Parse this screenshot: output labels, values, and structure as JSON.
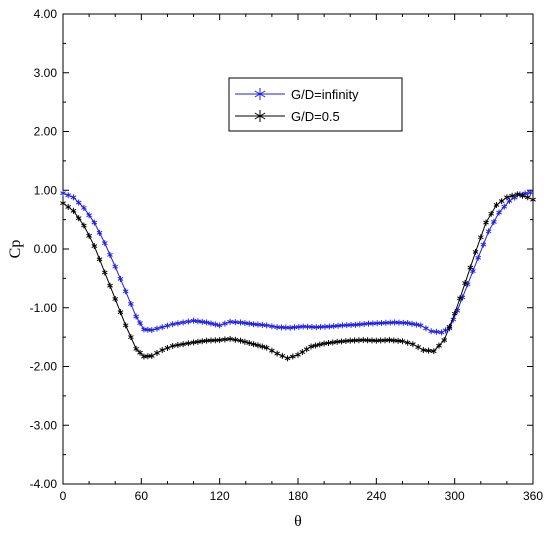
{
  "chart_data": {
    "type": "line",
    "title": "",
    "xlabel": "θ",
    "ylabel": "Cp",
    "xlim": [
      0,
      360
    ],
    "ylim": [
      -4,
      4
    ],
    "xticks": [
      0,
      60,
      120,
      180,
      240,
      300,
      360
    ],
    "yticks": [
      4,
      3,
      2,
      1,
      0,
      -1,
      -2,
      -3,
      -4
    ],
    "xtick_labels": [
      "0",
      "60",
      "120",
      "180",
      "240",
      "300",
      "360"
    ],
    "ytick_labels": [
      "4.00",
      "3.00",
      "2.00",
      "1.00",
      "0.00",
      "-1.00",
      "-2.00",
      "-3.00",
      "-4.00"
    ],
    "grid": false,
    "legend_position": "top-center",
    "series": [
      {
        "name": "G/D=infinity",
        "color": "#1f1fe6",
        "marker": "asterisk",
        "points": [
          [
            0,
            0.95
          ],
          [
            8,
            0.88
          ],
          [
            16,
            0.7
          ],
          [
            24,
            0.45
          ],
          [
            32,
            0.1
          ],
          [
            40,
            -0.3
          ],
          [
            48,
            -0.72
          ],
          [
            56,
            -1.15
          ],
          [
            62,
            -1.37
          ],
          [
            68,
            -1.38
          ],
          [
            76,
            -1.33
          ],
          [
            84,
            -1.28
          ],
          [
            92,
            -1.25
          ],
          [
            100,
            -1.22
          ],
          [
            110,
            -1.25
          ],
          [
            120,
            -1.3
          ],
          [
            128,
            -1.24
          ],
          [
            136,
            -1.25
          ],
          [
            146,
            -1.28
          ],
          [
            156,
            -1.3
          ],
          [
            164,
            -1.33
          ],
          [
            174,
            -1.34
          ],
          [
            184,
            -1.32
          ],
          [
            194,
            -1.33
          ],
          [
            204,
            -1.32
          ],
          [
            214,
            -1.3
          ],
          [
            224,
            -1.29
          ],
          [
            234,
            -1.27
          ],
          [
            244,
            -1.26
          ],
          [
            254,
            -1.25
          ],
          [
            264,
            -1.26
          ],
          [
            274,
            -1.3
          ],
          [
            282,
            -1.4
          ],
          [
            290,
            -1.42
          ],
          [
            296,
            -1.35
          ],
          [
            302,
            -1.05
          ],
          [
            310,
            -0.6
          ],
          [
            318,
            -0.15
          ],
          [
            326,
            0.3
          ],
          [
            334,
            0.62
          ],
          [
            342,
            0.82
          ],
          [
            350,
            0.93
          ],
          [
            358,
            0.96
          ]
        ]
      },
      {
        "name": "G/D=0.5",
        "color": "#000000",
        "marker": "asterisk",
        "points": [
          [
            0,
            0.78
          ],
          [
            8,
            0.65
          ],
          [
            16,
            0.4
          ],
          [
            24,
            0.05
          ],
          [
            32,
            -0.4
          ],
          [
            40,
            -0.85
          ],
          [
            48,
            -1.3
          ],
          [
            56,
            -1.7
          ],
          [
            62,
            -1.83
          ],
          [
            68,
            -1.82
          ],
          [
            76,
            -1.72
          ],
          [
            84,
            -1.65
          ],
          [
            92,
            -1.62
          ],
          [
            100,
            -1.59
          ],
          [
            110,
            -1.56
          ],
          [
            120,
            -1.55
          ],
          [
            128,
            -1.53
          ],
          [
            136,
            -1.56
          ],
          [
            146,
            -1.62
          ],
          [
            156,
            -1.68
          ],
          [
            164,
            -1.78
          ],
          [
            172,
            -1.86
          ],
          [
            180,
            -1.8
          ],
          [
            190,
            -1.66
          ],
          [
            200,
            -1.61
          ],
          [
            210,
            -1.58
          ],
          [
            220,
            -1.56
          ],
          [
            230,
            -1.55
          ],
          [
            240,
            -1.56
          ],
          [
            250,
            -1.55
          ],
          [
            260,
            -1.57
          ],
          [
            268,
            -1.62
          ],
          [
            276,
            -1.72
          ],
          [
            284,
            -1.74
          ],
          [
            292,
            -1.55
          ],
          [
            300,
            -1.1
          ],
          [
            308,
            -0.58
          ],
          [
            316,
            -0.05
          ],
          [
            324,
            0.45
          ],
          [
            332,
            0.75
          ],
          [
            340,
            0.88
          ],
          [
            348,
            0.93
          ],
          [
            356,
            0.88
          ],
          [
            360,
            0.84
          ]
        ]
      }
    ]
  }
}
